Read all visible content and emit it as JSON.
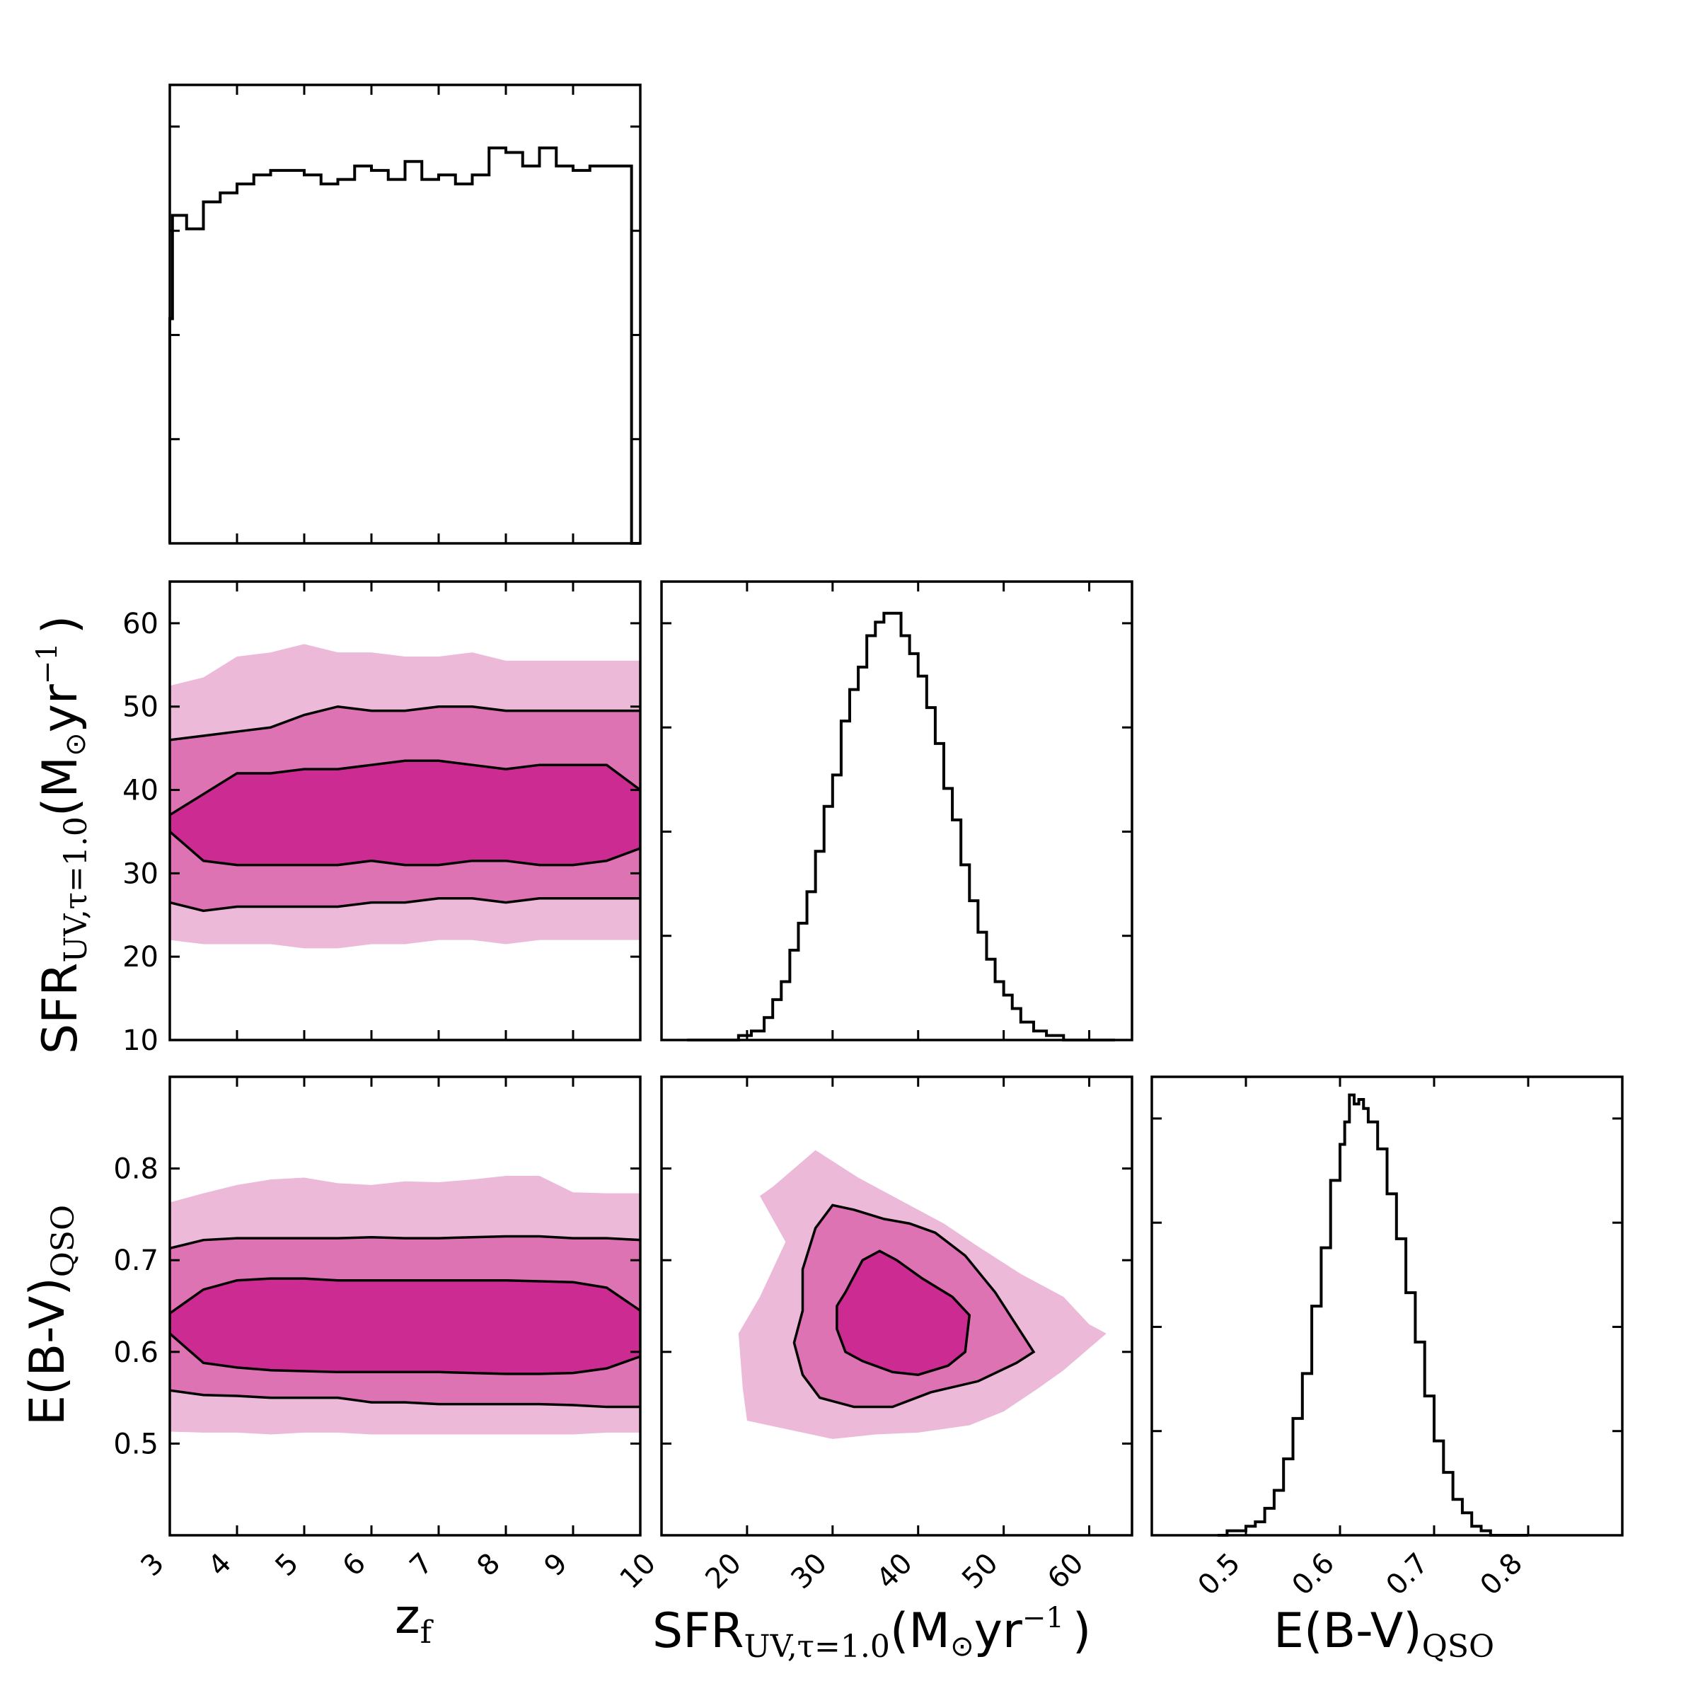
{
  "colors": {
    "level1": "#ecb9d9",
    "level2": "#de73b4",
    "level3": "#cc2c91",
    "line": "#000000"
  },
  "chart_data": {
    "type": "corner",
    "parameters": [
      {
        "key": "zf",
        "label_main": "z",
        "label_sub": "f",
        "lim": [
          3,
          10
        ],
        "ticks": [
          3,
          4,
          5,
          6,
          7,
          8,
          9
        ]
      },
      {
        "key": "sfr",
        "label_main": "SFR",
        "label_sub": "UV,τ=1.0",
        "label_unit": "(M",
        "label_sun": "⊙",
        "label_tail": "yr",
        "label_sup": "−1",
        "label_close": ")",
        "lim": [
          10,
          65
        ],
        "ticks": [
          10,
          20,
          30,
          40,
          50,
          60
        ]
      },
      {
        "key": "ebv",
        "label_main": "E(B-V)",
        "label_sub": "QSO",
        "lim": [
          0.4,
          0.9
        ],
        "ticks": [
          0.5,
          0.6,
          0.7,
          0.8
        ]
      }
    ],
    "marginals": {
      "zf": {
        "bin_edges": [
          3.0,
          3.04,
          3.25,
          3.5,
          3.75,
          4.0,
          4.25,
          4.5,
          4.75,
          5.0,
          5.25,
          5.5,
          5.75,
          6.0,
          6.25,
          6.5,
          6.75,
          7.0,
          7.25,
          7.5,
          7.75,
          8.0,
          8.25,
          8.5,
          8.75,
          9.0,
          9.25,
          9.5,
          9.75,
          9.87,
          10.0
        ],
        "heights": [
          0.5,
          0.73,
          0.7,
          0.76,
          0.78,
          0.8,
          0.82,
          0.83,
          0.83,
          0.82,
          0.8,
          0.81,
          0.84,
          0.83,
          0.81,
          0.85,
          0.81,
          0.82,
          0.8,
          0.82,
          0.88,
          0.87,
          0.84,
          0.88,
          0.84,
          0.83,
          0.84,
          0.84,
          0.84,
          0.0
        ]
      },
      "sfr": {
        "bin_edges": [
          13.0,
          14.5,
          16.0,
          17.5,
          19.0,
          20.5,
          22.0,
          23.0,
          24.0,
          25.0,
          26.0,
          27.0,
          28.0,
          29.0,
          30.0,
          31.0,
          32.0,
          33.0,
          34.0,
          35.0,
          36.0,
          37.0,
          38.0,
          39.0,
          40.0,
          41.0,
          42.0,
          43.0,
          44.0,
          45.0,
          46.0,
          47.0,
          48.0,
          49.0,
          50.0,
          51.0,
          52.0,
          53.5,
          55.0,
          57.0,
          59.0,
          61.0,
          63.0
        ],
        "heights": [
          0.0,
          0.0,
          0.0,
          0.0,
          0.01,
          0.02,
          0.05,
          0.09,
          0.13,
          0.2,
          0.26,
          0.33,
          0.42,
          0.52,
          0.59,
          0.71,
          0.78,
          0.83,
          0.9,
          0.93,
          0.95,
          0.95,
          0.9,
          0.86,
          0.81,
          0.74,
          0.66,
          0.56,
          0.49,
          0.39,
          0.31,
          0.24,
          0.18,
          0.13,
          0.1,
          0.07,
          0.04,
          0.02,
          0.01,
          0.0,
          0.0,
          0.0
        ]
      },
      "ebv": {
        "bin_edges": [
          0.47,
          0.48,
          0.49,
          0.5,
          0.51,
          0.52,
          0.53,
          0.54,
          0.55,
          0.56,
          0.57,
          0.58,
          0.59,
          0.6,
          0.605,
          0.61,
          0.615,
          0.62,
          0.625,
          0.63,
          0.64,
          0.65,
          0.66,
          0.67,
          0.68,
          0.69,
          0.7,
          0.71,
          0.72,
          0.73,
          0.74,
          0.75,
          0.76,
          0.78,
          0.8
        ],
        "heights": [
          0.0,
          0.01,
          0.01,
          0.02,
          0.03,
          0.06,
          0.1,
          0.17,
          0.26,
          0.36,
          0.51,
          0.64,
          0.79,
          0.87,
          0.92,
          0.98,
          0.96,
          0.97,
          0.95,
          0.92,
          0.86,
          0.76,
          0.66,
          0.54,
          0.43,
          0.31,
          0.21,
          0.14,
          0.08,
          0.05,
          0.02,
          0.01,
          0.0,
          0.0
        ]
      }
    },
    "joint": {
      "sfr_vs_zf": {
        "x": "zf",
        "y": "sfr",
        "x_samples": [
          3.0,
          3.5,
          4.0,
          4.5,
          5.0,
          5.5,
          6.0,
          6.5,
          7.0,
          7.5,
          8.0,
          8.5,
          9.0,
          9.5,
          10.0
        ],
        "outer": {
          "fill_upper": [
            52.5,
            53.5,
            56.0,
            56.5,
            57.5,
            56.5,
            56.5,
            56.0,
            56.0,
            56.5,
            55.5,
            55.5,
            55.5,
            55.5,
            55.5
          ],
          "fill_lower": [
            22.0,
            21.5,
            21.5,
            21.5,
            21.0,
            21.0,
            21.5,
            21.5,
            22.0,
            22.0,
            21.5,
            22.0,
            22.0,
            22.0,
            22.0
          ]
        },
        "mid": {
          "upper": [
            46.0,
            46.5,
            47.0,
            47.5,
            49.0,
            50.0,
            49.5,
            49.5,
            50.0,
            50.0,
            49.5,
            49.5,
            49.5,
            49.5,
            49.5
          ],
          "lower": [
            26.5,
            25.5,
            26.0,
            26.0,
            26.0,
            26.0,
            26.5,
            26.5,
            27.0,
            27.0,
            26.5,
            27.0,
            27.0,
            27.0,
            27.0
          ]
        },
        "inner": {
          "upper": [
            37.0,
            39.5,
            42.0,
            42.0,
            42.5,
            42.5,
            43.0,
            43.5,
            43.5,
            43.0,
            42.5,
            43.0,
            43.0,
            43.0,
            40.0
          ],
          "lower": [
            35.0,
            31.5,
            31.0,
            31.0,
            31.0,
            31.0,
            31.5,
            31.0,
            31.0,
            31.5,
            31.5,
            31.0,
            31.0,
            31.5,
            33.0
          ]
        }
      },
      "ebv_vs_zf": {
        "x": "zf",
        "y": "ebv",
        "x_samples": [
          3.0,
          3.5,
          4.0,
          4.5,
          5.0,
          5.5,
          6.0,
          6.5,
          7.0,
          7.5,
          8.0,
          8.5,
          9.0,
          9.5,
          10.0
        ],
        "outer": {
          "fill_upper": [
            0.763,
            0.773,
            0.782,
            0.788,
            0.79,
            0.784,
            0.782,
            0.786,
            0.785,
            0.788,
            0.792,
            0.792,
            0.774,
            0.773,
            0.773
          ],
          "fill_lower": [
            0.513,
            0.512,
            0.512,
            0.51,
            0.512,
            0.512,
            0.51,
            0.51,
            0.51,
            0.51,
            0.51,
            0.51,
            0.51,
            0.512,
            0.512
          ]
        },
        "mid": {
          "upper": [
            0.713,
            0.722,
            0.724,
            0.724,
            0.724,
            0.724,
            0.725,
            0.724,
            0.724,
            0.725,
            0.726,
            0.726,
            0.724,
            0.724,
            0.722
          ],
          "lower": [
            0.558,
            0.553,
            0.552,
            0.55,
            0.55,
            0.55,
            0.545,
            0.545,
            0.543,
            0.543,
            0.543,
            0.543,
            0.542,
            0.54,
            0.54
          ]
        },
        "inner": {
          "upper": [
            0.642,
            0.668,
            0.678,
            0.68,
            0.68,
            0.678,
            0.678,
            0.678,
            0.678,
            0.678,
            0.678,
            0.677,
            0.676,
            0.67,
            0.645
          ],
          "lower": [
            0.62,
            0.588,
            0.583,
            0.58,
            0.579,
            0.578,
            0.578,
            0.578,
            0.578,
            0.577,
            0.576,
            0.576,
            0.577,
            0.582,
            0.595
          ]
        }
      },
      "ebv_vs_sfr": {
        "x": "sfr",
        "y": "ebv",
        "outer": [
          [
            20.0,
            0.525
          ],
          [
            25.0,
            0.515
          ],
          [
            30.0,
            0.505
          ],
          [
            35.0,
            0.51
          ],
          [
            40.0,
            0.512
          ],
          [
            46.0,
            0.52
          ],
          [
            50.0,
            0.535
          ],
          [
            54.0,
            0.56
          ],
          [
            57.0,
            0.58
          ],
          [
            62.0,
            0.62
          ],
          [
            60.0,
            0.63
          ],
          [
            57.0,
            0.66
          ],
          [
            52.0,
            0.685
          ],
          [
            47.0,
            0.715
          ],
          [
            43.0,
            0.74
          ],
          [
            38.0,
            0.765
          ],
          [
            33.0,
            0.79
          ],
          [
            28.0,
            0.82
          ],
          [
            23.0,
            0.78
          ],
          [
            21.5,
            0.77
          ],
          [
            24.5,
            0.72
          ],
          [
            21.5,
            0.66
          ],
          [
            19.0,
            0.62
          ],
          [
            19.5,
            0.56
          ]
        ],
        "mid": [
          [
            26.5,
            0.69
          ],
          [
            28.0,
            0.735
          ],
          [
            30.0,
            0.76
          ],
          [
            32.5,
            0.755
          ],
          [
            36.0,
            0.745
          ],
          [
            39.0,
            0.74
          ],
          [
            42.0,
            0.73
          ],
          [
            45.5,
            0.705
          ],
          [
            49.0,
            0.665
          ],
          [
            53.5,
            0.6
          ],
          [
            51.5,
            0.588
          ],
          [
            47.0,
            0.568
          ],
          [
            41.5,
            0.556
          ],
          [
            37.0,
            0.54
          ],
          [
            32.5,
            0.54
          ],
          [
            28.5,
            0.55
          ],
          [
            26.5,
            0.575
          ],
          [
            25.5,
            0.61
          ],
          [
            26.5,
            0.645
          ]
        ],
        "inner": [
          [
            31.5,
            0.665
          ],
          [
            33.5,
            0.7
          ],
          [
            35.5,
            0.71
          ],
          [
            37.5,
            0.7
          ],
          [
            40.5,
            0.68
          ],
          [
            44.0,
            0.66
          ],
          [
            46.0,
            0.64
          ],
          [
            45.5,
            0.6
          ],
          [
            43.5,
            0.585
          ],
          [
            40.0,
            0.575
          ],
          [
            37.0,
            0.578
          ],
          [
            33.5,
            0.59
          ],
          [
            31.5,
            0.6
          ],
          [
            30.5,
            0.625
          ],
          [
            30.5,
            0.65
          ]
        ]
      }
    }
  }
}
